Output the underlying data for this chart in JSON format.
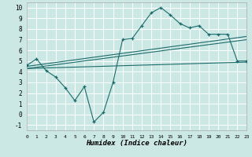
{
  "xlabel": "Humidex (Indice chaleur)",
  "xlim": [
    0,
    23
  ],
  "ylim": [
    -1.5,
    10.5
  ],
  "xticks": [
    0,
    1,
    2,
    3,
    4,
    5,
    6,
    7,
    8,
    9,
    10,
    11,
    12,
    13,
    14,
    15,
    16,
    17,
    18,
    19,
    20,
    21,
    22,
    23
  ],
  "yticks": [
    -1,
    0,
    1,
    2,
    3,
    4,
    5,
    6,
    7,
    8,
    9,
    10
  ],
  "bg_color": "#cce8e4",
  "line_color": "#1a6b6b",
  "grid_color": "#ffffff",
  "line1_x": [
    0,
    1,
    2,
    3,
    4,
    5,
    6,
    7,
    8,
    9,
    10,
    11,
    12,
    13,
    14,
    15,
    16,
    17,
    18,
    19,
    20,
    21,
    22,
    23
  ],
  "line1_y": [
    4.6,
    5.2,
    4.1,
    3.5,
    2.5,
    1.3,
    2.6,
    -0.7,
    0.2,
    3.0,
    7.0,
    7.1,
    8.3,
    9.5,
    10.0,
    9.3,
    8.5,
    8.1,
    8.3,
    7.5,
    7.5,
    7.5,
    5.0,
    5.0
  ],
  "line2_x": [
    0,
    23
  ],
  "line2_y": [
    4.5,
    7.3
  ],
  "line3_x": [
    0,
    23
  ],
  "line3_y": [
    4.3,
    7.0
  ],
  "line4_x": [
    0,
    23
  ],
  "line4_y": [
    4.3,
    4.9
  ]
}
